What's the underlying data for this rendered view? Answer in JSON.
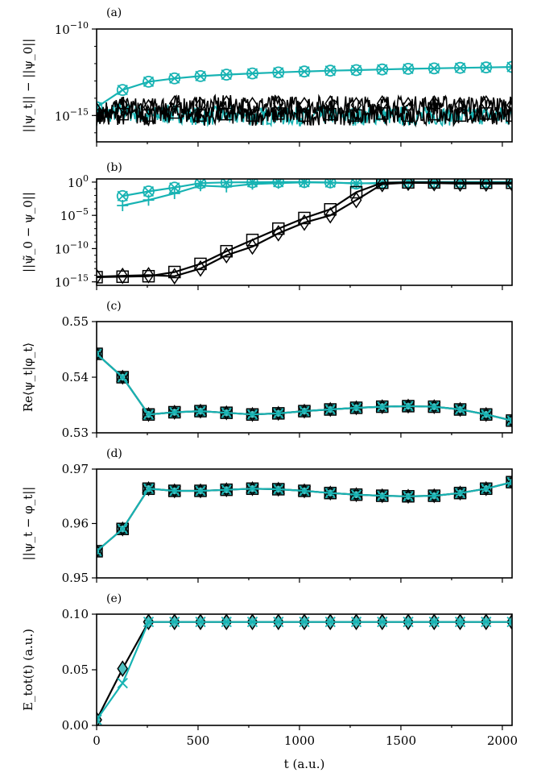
{
  "colors": {
    "black_series": "#000000",
    "cyan_series": "#17b3b3",
    "cyan_marker_fill": "#4fc0c0"
  },
  "chart_data": [
    {
      "type": "line",
      "panel": "(a)",
      "ylabel": "||ψ_t|| − ||ψ_0||",
      "yscale": "log",
      "ylim": [
        3e-17,
        1e-10
      ],
      "yticks": [
        1e-10,
        1e-15
      ],
      "ytick_labels": [
        "10^−10",
        "10^−15"
      ],
      "xlim": [
        0,
        2048
      ],
      "grid": false,
      "series": [
        {
          "color": "cyan",
          "marker": "x-circle",
          "x": [
            0,
            128,
            256,
            384,
            512,
            640,
            768,
            896,
            1024,
            1152,
            1280,
            1408,
            1536,
            1664,
            1792,
            1920,
            2048
          ],
          "y": [
            3e-15,
            3e-14,
            9e-14,
            1.4e-13,
            1.9e-13,
            2.3e-13,
            2.7e-13,
            3.1e-13,
            3.5e-13,
            3.9e-13,
            4.2e-13,
            4.6e-13,
            5e-13,
            5.3e-13,
            5.7e-13,
            6e-13,
            6.4e-13
          ]
        },
        {
          "color": "cyan",
          "marker": "none",
          "noisy": true,
          "x": [
            0,
            128,
            256,
            384,
            512,
            640,
            768,
            896,
            1024,
            1152,
            1280,
            1408,
            1536,
            1664,
            1792,
            1920,
            2048
          ],
          "y": [
            1e-15,
            2e-15,
            1e-15,
            1.5e-15,
            1e-15,
            1.2e-15,
            1e-15,
            1.1e-15,
            1e-15,
            1.3e-15,
            1e-15,
            1.2e-15,
            1e-15,
            1.1e-15,
            1e-15,
            1.2e-15,
            1e-15
          ]
        },
        {
          "color": "black",
          "marker": "diamond",
          "noisy": true,
          "x": [
            0,
            128,
            256,
            384,
            512,
            640,
            768,
            896,
            1024,
            1152,
            1280,
            1408,
            1536,
            1664,
            1792,
            1920,
            2048
          ],
          "y": [
            2e-15,
            4e-15,
            3e-15,
            5e-15,
            4e-15,
            5e-15,
            4e-15,
            5e-15,
            4e-15,
            5e-15,
            4e-15,
            5e-15,
            4e-15,
            5e-15,
            4e-15,
            5e-15,
            4e-15
          ]
        },
        {
          "color": "black",
          "marker": "square",
          "noisy": true,
          "x": [
            0,
            128,
            256,
            384,
            512,
            640,
            768,
            896,
            1024,
            1152,
            1280,
            1408,
            1536,
            1664,
            1792,
            1920,
            2048
          ],
          "y": [
            1e-15,
            1.2e-15,
            1e-15,
            1.5e-15,
            1e-15,
            1.2e-15,
            1e-15,
            1.3e-15,
            1e-15,
            1.2e-15,
            1e-15,
            1.3e-15,
            1e-15,
            1.2e-15,
            1e-15,
            1.3e-15,
            1e-15
          ]
        }
      ]
    },
    {
      "type": "line",
      "panel": "(b)",
      "ylabel": "||ψ̃_0 − ψ_0||",
      "yscale": "log",
      "ylim": [
        3e-16,
        3
      ],
      "yticks": [
        1,
        1e-05,
        1e-10,
        1e-15
      ],
      "ytick_labels": [
        "10^0",
        "10^−5",
        "10^−10",
        "10^−15"
      ],
      "xlim": [
        0,
        2048
      ],
      "grid": false,
      "series": [
        {
          "color": "cyan",
          "marker": "x-circle",
          "x": [
            128,
            256,
            384,
            512,
            640,
            768,
            896,
            1024,
            1152,
            1280,
            1408,
            1536,
            1664,
            1792,
            1920,
            2048
          ],
          "y": [
            0.008,
            0.04,
            0.15,
            0.7,
            0.9,
            0.95,
            1,
            1,
            0.9,
            0.6,
            0.8,
            1,
            1,
            1,
            1,
            1
          ]
        },
        {
          "color": "cyan",
          "marker": "plus",
          "x": [
            128,
            256,
            384,
            512,
            640,
            768,
            896,
            1024,
            1152,
            1280,
            1408,
            1536,
            1664,
            1792,
            1920,
            2048
          ],
          "y": [
            0.0003,
            0.002,
            0.02,
            0.3,
            0.2,
            0.5,
            0.7,
            0.9,
            0.8,
            0.7,
            0.6,
            1,
            1,
            1,
            1,
            1
          ]
        },
        {
          "color": "black",
          "marker": "square",
          "x": [
            0,
            128,
            256,
            384,
            512,
            640,
            768,
            896,
            1024,
            1152,
            1280,
            1408,
            1536,
            1664,
            1792,
            1920,
            2048
          ],
          "y": [
            5e-15,
            6e-15,
            7e-15,
            3e-14,
            5e-13,
            4e-11,
            2e-09,
            1e-07,
            4e-06,
            8e-05,
            0.03,
            0.8,
            0.9,
            0.9,
            0.8,
            0.8,
            0.8
          ]
        },
        {
          "color": "black",
          "marker": "diamond",
          "x": [
            0,
            128,
            256,
            384,
            512,
            640,
            768,
            896,
            1024,
            1152,
            1280,
            1408,
            1536,
            1664,
            1792,
            1920,
            2048
          ],
          "y": [
            6e-15,
            8e-15,
            1e-14,
            7e-15,
            1e-13,
            1e-11,
            2e-10,
            2e-08,
            8e-07,
            1e-05,
            0.002,
            0.5,
            0.8,
            0.7,
            0.6,
            0.6,
            0.6
          ]
        }
      ]
    },
    {
      "type": "line",
      "panel": "(c)",
      "ylabel": "Re⟨ψ_t|φ_t⟩",
      "ylim": [
        0.53,
        0.55
      ],
      "yticks": [
        0.55,
        0.54,
        0.53
      ],
      "ytick_labels": [
        "0.55",
        "0.54",
        "0.53"
      ],
      "xlim": [
        0,
        2048
      ],
      "grid": false,
      "series": [
        {
          "color": "black",
          "marker": "square",
          "x": [
            0,
            128,
            256,
            384,
            512,
            640,
            768,
            896,
            1024,
            1152,
            1280,
            1408,
            1536,
            1664,
            1792,
            1920,
            2048
          ],
          "y": [
            0.5442,
            0.54,
            0.5333,
            0.5337,
            0.5339,
            0.5336,
            0.5333,
            0.5335,
            0.5339,
            0.5342,
            0.5345,
            0.5347,
            0.5348,
            0.5347,
            0.5342,
            0.5333,
            0.5322
          ]
        },
        {
          "color": "cyan",
          "marker": "x",
          "x": [
            0,
            128,
            256,
            384,
            512,
            640,
            768,
            896,
            1024,
            1152,
            1280,
            1408,
            1536,
            1664,
            1792,
            1920,
            2048
          ],
          "y": [
            0.5442,
            0.54,
            0.5333,
            0.5337,
            0.5339,
            0.5336,
            0.5333,
            0.5335,
            0.5339,
            0.5342,
            0.5345,
            0.5347,
            0.5348,
            0.5347,
            0.5342,
            0.5333,
            0.5322
          ]
        }
      ]
    },
    {
      "type": "line",
      "panel": "(d)",
      "ylabel": "||ψ_t − φ_t||",
      "ylim": [
        0.95,
        0.97
      ],
      "yticks": [
        0.97,
        0.96,
        0.95
      ],
      "ytick_labels": [
        "0.97",
        "0.96",
        "0.95"
      ],
      "xlim": [
        0,
        2048
      ],
      "grid": false,
      "series": [
        {
          "color": "black",
          "marker": "square",
          "x": [
            0,
            128,
            256,
            384,
            512,
            640,
            768,
            896,
            1024,
            1152,
            1280,
            1408,
            1536,
            1664,
            1792,
            1920,
            2048
          ],
          "y": [
            0.9549,
            0.959,
            0.9664,
            0.966,
            0.966,
            0.9662,
            0.9664,
            0.9663,
            0.966,
            0.9656,
            0.9653,
            0.9651,
            0.965,
            0.9651,
            0.9656,
            0.9664,
            0.9676
          ]
        },
        {
          "color": "cyan",
          "marker": "x",
          "x": [
            0,
            128,
            256,
            384,
            512,
            640,
            768,
            896,
            1024,
            1152,
            1280,
            1408,
            1536,
            1664,
            1792,
            1920,
            2048
          ],
          "y": [
            0.9549,
            0.959,
            0.9664,
            0.966,
            0.966,
            0.9662,
            0.9664,
            0.9663,
            0.966,
            0.9656,
            0.9653,
            0.9651,
            0.965,
            0.9651,
            0.9656,
            0.9664,
            0.9676
          ]
        }
      ]
    },
    {
      "type": "line",
      "panel": "(e)",
      "ylabel": "E_tot(t) (a.u.)",
      "xlabel": "t (a.u.)",
      "ylim": [
        0,
        0.1
      ],
      "yticks": [
        0.1,
        0.05,
        0.0
      ],
      "ytick_labels": [
        "0.10",
        "0.05",
        "0.00"
      ],
      "xlim": [
        0,
        2048
      ],
      "xticks": [
        0,
        500,
        1000,
        1500,
        2000
      ],
      "xtick_labels": [
        "0",
        "500",
        "1000",
        "1500",
        "2000"
      ],
      "grid": false,
      "series": [
        {
          "color": "black",
          "marker": "diamond",
          "x": [
            0,
            128,
            256,
            384,
            512,
            640,
            768,
            896,
            1024,
            1152,
            1280,
            1408,
            1536,
            1664,
            1792,
            1920,
            2048
          ],
          "y": [
            0.005,
            0.051,
            0.093,
            0.093,
            0.093,
            0.093,
            0.093,
            0.093,
            0.093,
            0.093,
            0.093,
            0.093,
            0.093,
            0.093,
            0.093,
            0.093,
            0.093
          ]
        },
        {
          "color": "cyan",
          "marker": "x",
          "x": [
            0,
            128,
            256,
            384,
            512,
            640,
            768,
            896,
            1024,
            1152,
            1280,
            1408,
            1536,
            1664,
            1792,
            1920,
            2048
          ],
          "y": [
            0.005,
            0.038,
            0.093,
            0.093,
            0.093,
            0.093,
            0.093,
            0.093,
            0.093,
            0.093,
            0.093,
            0.093,
            0.093,
            0.093,
            0.093,
            0.093,
            0.093
          ]
        }
      ]
    }
  ]
}
